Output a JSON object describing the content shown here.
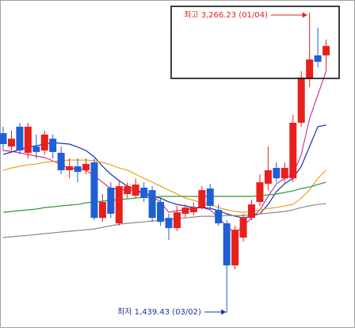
{
  "chart_data": {
    "type": "candlestick",
    "ylim": [
      1348,
      3343
    ],
    "up_color": "#e8201c",
    "down_color": "#1f5fd6",
    "open": [
      2533,
      2451,
      2572,
      2413,
      2451,
      2427,
      2499,
      2413,
      2307,
      2331,
      2307,
      2355,
      2017,
      2201,
      1984,
      2162,
      2152,
      2201,
      2186,
      2114,
      2017,
      1955,
      2042,
      2051,
      2080,
      2196,
      2066,
      1984,
      1728,
      1897,
      2017,
      2114,
      2225,
      2321,
      2258,
      2258,
      2596,
      2861,
      3006,
      3006
    ],
    "high": [
      2572,
      2548,
      2596,
      2596,
      2524,
      2548,
      2524,
      2451,
      2379,
      2379,
      2379,
      2379,
      2162,
      2234,
      2244,
      2234,
      2258,
      2234,
      2210,
      2138,
      2042,
      2090,
      2099,
      2109,
      2210,
      2225,
      2099,
      2003,
      1969,
      2042,
      2128,
      2283,
      2451,
      2355,
      2355,
      2644,
      2909,
      3266.23,
      3174,
      3102
    ],
    "low": [
      2427,
      2427,
      2403,
      2379,
      2379,
      2403,
      2379,
      2283,
      2258,
      2234,
      2283,
      2003,
      1993,
      2017,
      1969,
      2138,
      2138,
      2114,
      1993,
      1969,
      1883,
      1936,
      2017,
      2032,
      2066,
      2066,
      1969,
      1439.43,
      1704,
      1873,
      2003,
      2090,
      2186,
      2234,
      2234,
      2234,
      2572,
      2813,
      2933,
      2909
    ],
    "close": [
      2466,
      2499,
      2427,
      2572,
      2418,
      2524,
      2418,
      2307,
      2331,
      2297,
      2345,
      2017,
      2114,
      2042,
      2210,
      2210,
      2220,
      2138,
      2017,
      1993,
      1955,
      2051,
      2080,
      2080,
      2186,
      2090,
      1984,
      1728,
      1945,
      2017,
      2099,
      2234,
      2307,
      2258,
      2321,
      2596,
      2871,
      2981,
      2967,
      3063
    ],
    "moving_averages": [
      {
        "color": "#d6339c",
        "values": [
          2427,
          2422,
          2413,
          2403,
          2393,
          2384,
          2365,
          2340,
          2321,
          2316,
          2307,
          2273,
          2234,
          2196,
          2191,
          2186,
          2181,
          2177,
          2148,
          2114,
          2051,
          2061,
          2066,
          2075,
          2080,
          2066,
          2017,
          1969,
          1921,
          1969,
          2017,
          2066,
          2148,
          2225,
          2258,
          2283,
          2403,
          2620,
          2765,
          2909
        ]
      },
      {
        "color": "#1a2fa8",
        "values": [
          2403,
          2418,
          2432,
          2448,
          2456,
          2466,
          2475,
          2471,
          2466,
          2448,
          2427,
          2389,
          2331,
          2283,
          2244,
          2210,
          2186,
          2162,
          2148,
          2138,
          2114,
          2099,
          2090,
          2080,
          2080,
          2075,
          2061,
          2042,
          2027,
          2017,
          2027,
          2042,
          2099,
          2177,
          2225,
          2258,
          2331,
          2451,
          2572,
          2582
        ]
      },
      {
        "color": "#f0a020",
        "values": [
          2307,
          2321,
          2331,
          2340,
          2345,
          2355,
          2360,
          2365,
          2369,
          2369,
          2369,
          2365,
          2355,
          2340,
          2321,
          2307,
          2283,
          2258,
          2234,
          2210,
          2186,
          2162,
          2138,
          2124,
          2109,
          2099,
          2080,
          2066,
          2056,
          2051,
          2056,
          2066,
          2075,
          2080,
          2090,
          2099,
          2138,
          2186,
          2258,
          2307
        ]
      },
      {
        "color": "#2e9a3a",
        "values": [
          2051,
          2056,
          2061,
          2066,
          2071,
          2080,
          2085,
          2090,
          2095,
          2099,
          2109,
          2114,
          2119,
          2124,
          2128,
          2133,
          2138,
          2143,
          2143,
          2148,
          2148,
          2148,
          2148,
          2148,
          2148,
          2148,
          2148,
          2148,
          2148,
          2148,
          2148,
          2152,
          2157,
          2162,
          2172,
          2181,
          2196,
          2205,
          2220,
          2234
        ]
      },
      {
        "color": "#8a8a8a",
        "values": [
          1897,
          1902,
          1907,
          1911,
          1916,
          1921,
          1926,
          1931,
          1936,
          1940,
          1945,
          1950,
          1960,
          1969,
          1979,
          1984,
          1989,
          1993,
          1998,
          2003,
          2008,
          2013,
          2017,
          2022,
          2027,
          2027,
          2027,
          2032,
          2032,
          2032,
          2037,
          2042,
          2046,
          2051,
          2056,
          2066,
          2080,
          2090,
          2099,
          2104
        ]
      }
    ],
    "high_annotation": "최고 3,266.23 (01/04)",
    "low_annotation": "최저 1,439.43 (03/02)"
  }
}
